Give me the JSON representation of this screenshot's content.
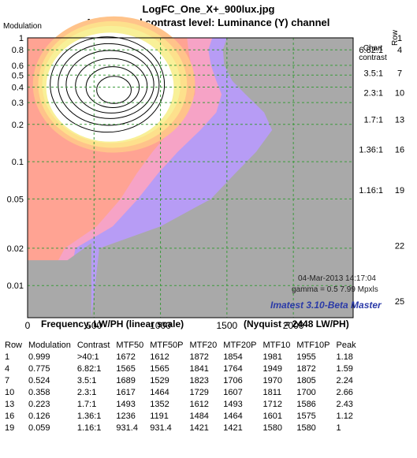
{
  "header": {
    "title": "LogFC_One_X+_900lux.jpg",
    "subtitle": "Normalized contrast level:  Luminance (Y) channel"
  },
  "chart_data": {
    "type": "heatmap",
    "title": "Normalized contrast level:  Luminance (Y) channel",
    "xlabel": "Frequency, LW/PH (linear scale)",
    "ylabel": "Modulation",
    "xlim": [
      0,
      2450
    ],
    "ylim": [
      0.0055,
      1.0
    ],
    "y_scale": "log",
    "grid": true,
    "x_ticks": [
      "0",
      "500",
      "1000",
      "1500",
      "2000"
    ],
    "y_ticks": [
      "1",
      "0.8",
      "0.6",
      "0.5",
      "0.4",
      "0.3",
      "0.2",
      "0.1",
      "0.05",
      "0.02",
      "0.01"
    ],
    "right_axis_label": "Row",
    "right_ticks": [
      "1",
      "4",
      "7",
      "10",
      "13",
      "16",
      "19",
      "22",
      "25"
    ],
    "contrast_label": "Chart\ncontrast",
    "contrast_ticks": [
      "6.82:1",
      "3.5:1",
      "2.3:1",
      "1.7:1",
      "1.36:1",
      "1.16:1"
    ],
    "contour_levels": [
      0.02,
      0.05,
      0.1,
      0.2,
      0.3,
      0.4,
      0.5,
      0.6,
      0.7,
      0.8,
      0.9,
      1.0,
      1.1,
      1.2,
      1.3,
      1.4,
      1.6,
      1.8,
      2.0,
      2.2,
      2.4,
      2.6
    ],
    "peak_value": 2.66,
    "annotations": {
      "nyquist": "(Nyquist = 2448 LW/PH)",
      "date": "04-Mar-2013 14:17:04",
      "gamma": "gamma = 0.5   7.99 Mpxls",
      "software": "Imatest 3.10-Beta Master"
    }
  },
  "table": {
    "headers": [
      "Row",
      "Modulation",
      "Contrast",
      "MTF50",
      "MTF50P",
      "MTF20",
      "MTF20P",
      "MTF10",
      "MTF10P",
      "Peak"
    ],
    "rows": [
      [
        "1",
        "0.999",
        ">40:1",
        "1672",
        "1612",
        "1872",
        "1854",
        "1981",
        "1955",
        "1.18"
      ],
      [
        "4",
        "0.775",
        "6.82:1",
        "1565",
        "1565",
        "1841",
        "1764",
        "1949",
        "1872",
        "1.59"
      ],
      [
        "7",
        "0.524",
        "3.5:1",
        "1689",
        "1529",
        "1823",
        "1706",
        "1970",
        "1805",
        "2.24"
      ],
      [
        "10",
        "0.358",
        "2.3:1",
        "1617",
        "1464",
        "1729",
        "1607",
        "1811",
        "1700",
        "2.66"
      ],
      [
        "13",
        "0.223",
        "1.7:1",
        "1493",
        "1352",
        "1612",
        "1493",
        "1712",
        "1586",
        "2.43"
      ],
      [
        "16",
        "0.126",
        "1.36:1",
        "1236",
        "1191",
        "1484",
        "1464",
        "1601",
        "1575",
        "1.12"
      ],
      [
        "19",
        "0.059",
        "1.16:1",
        "931.4",
        "931.4",
        "1421",
        "1421",
        "1580",
        "1580",
        "1"
      ]
    ]
  },
  "colors": {
    "background_gray": "#a9a9a9",
    "grid": "#3c9a3c",
    "low_level": "#ffa393",
    "mid_level": "#f8f098",
    "high_level": "#ffffff",
    "falloff": "#b79cf5",
    "brand": "#2a3aa8"
  }
}
